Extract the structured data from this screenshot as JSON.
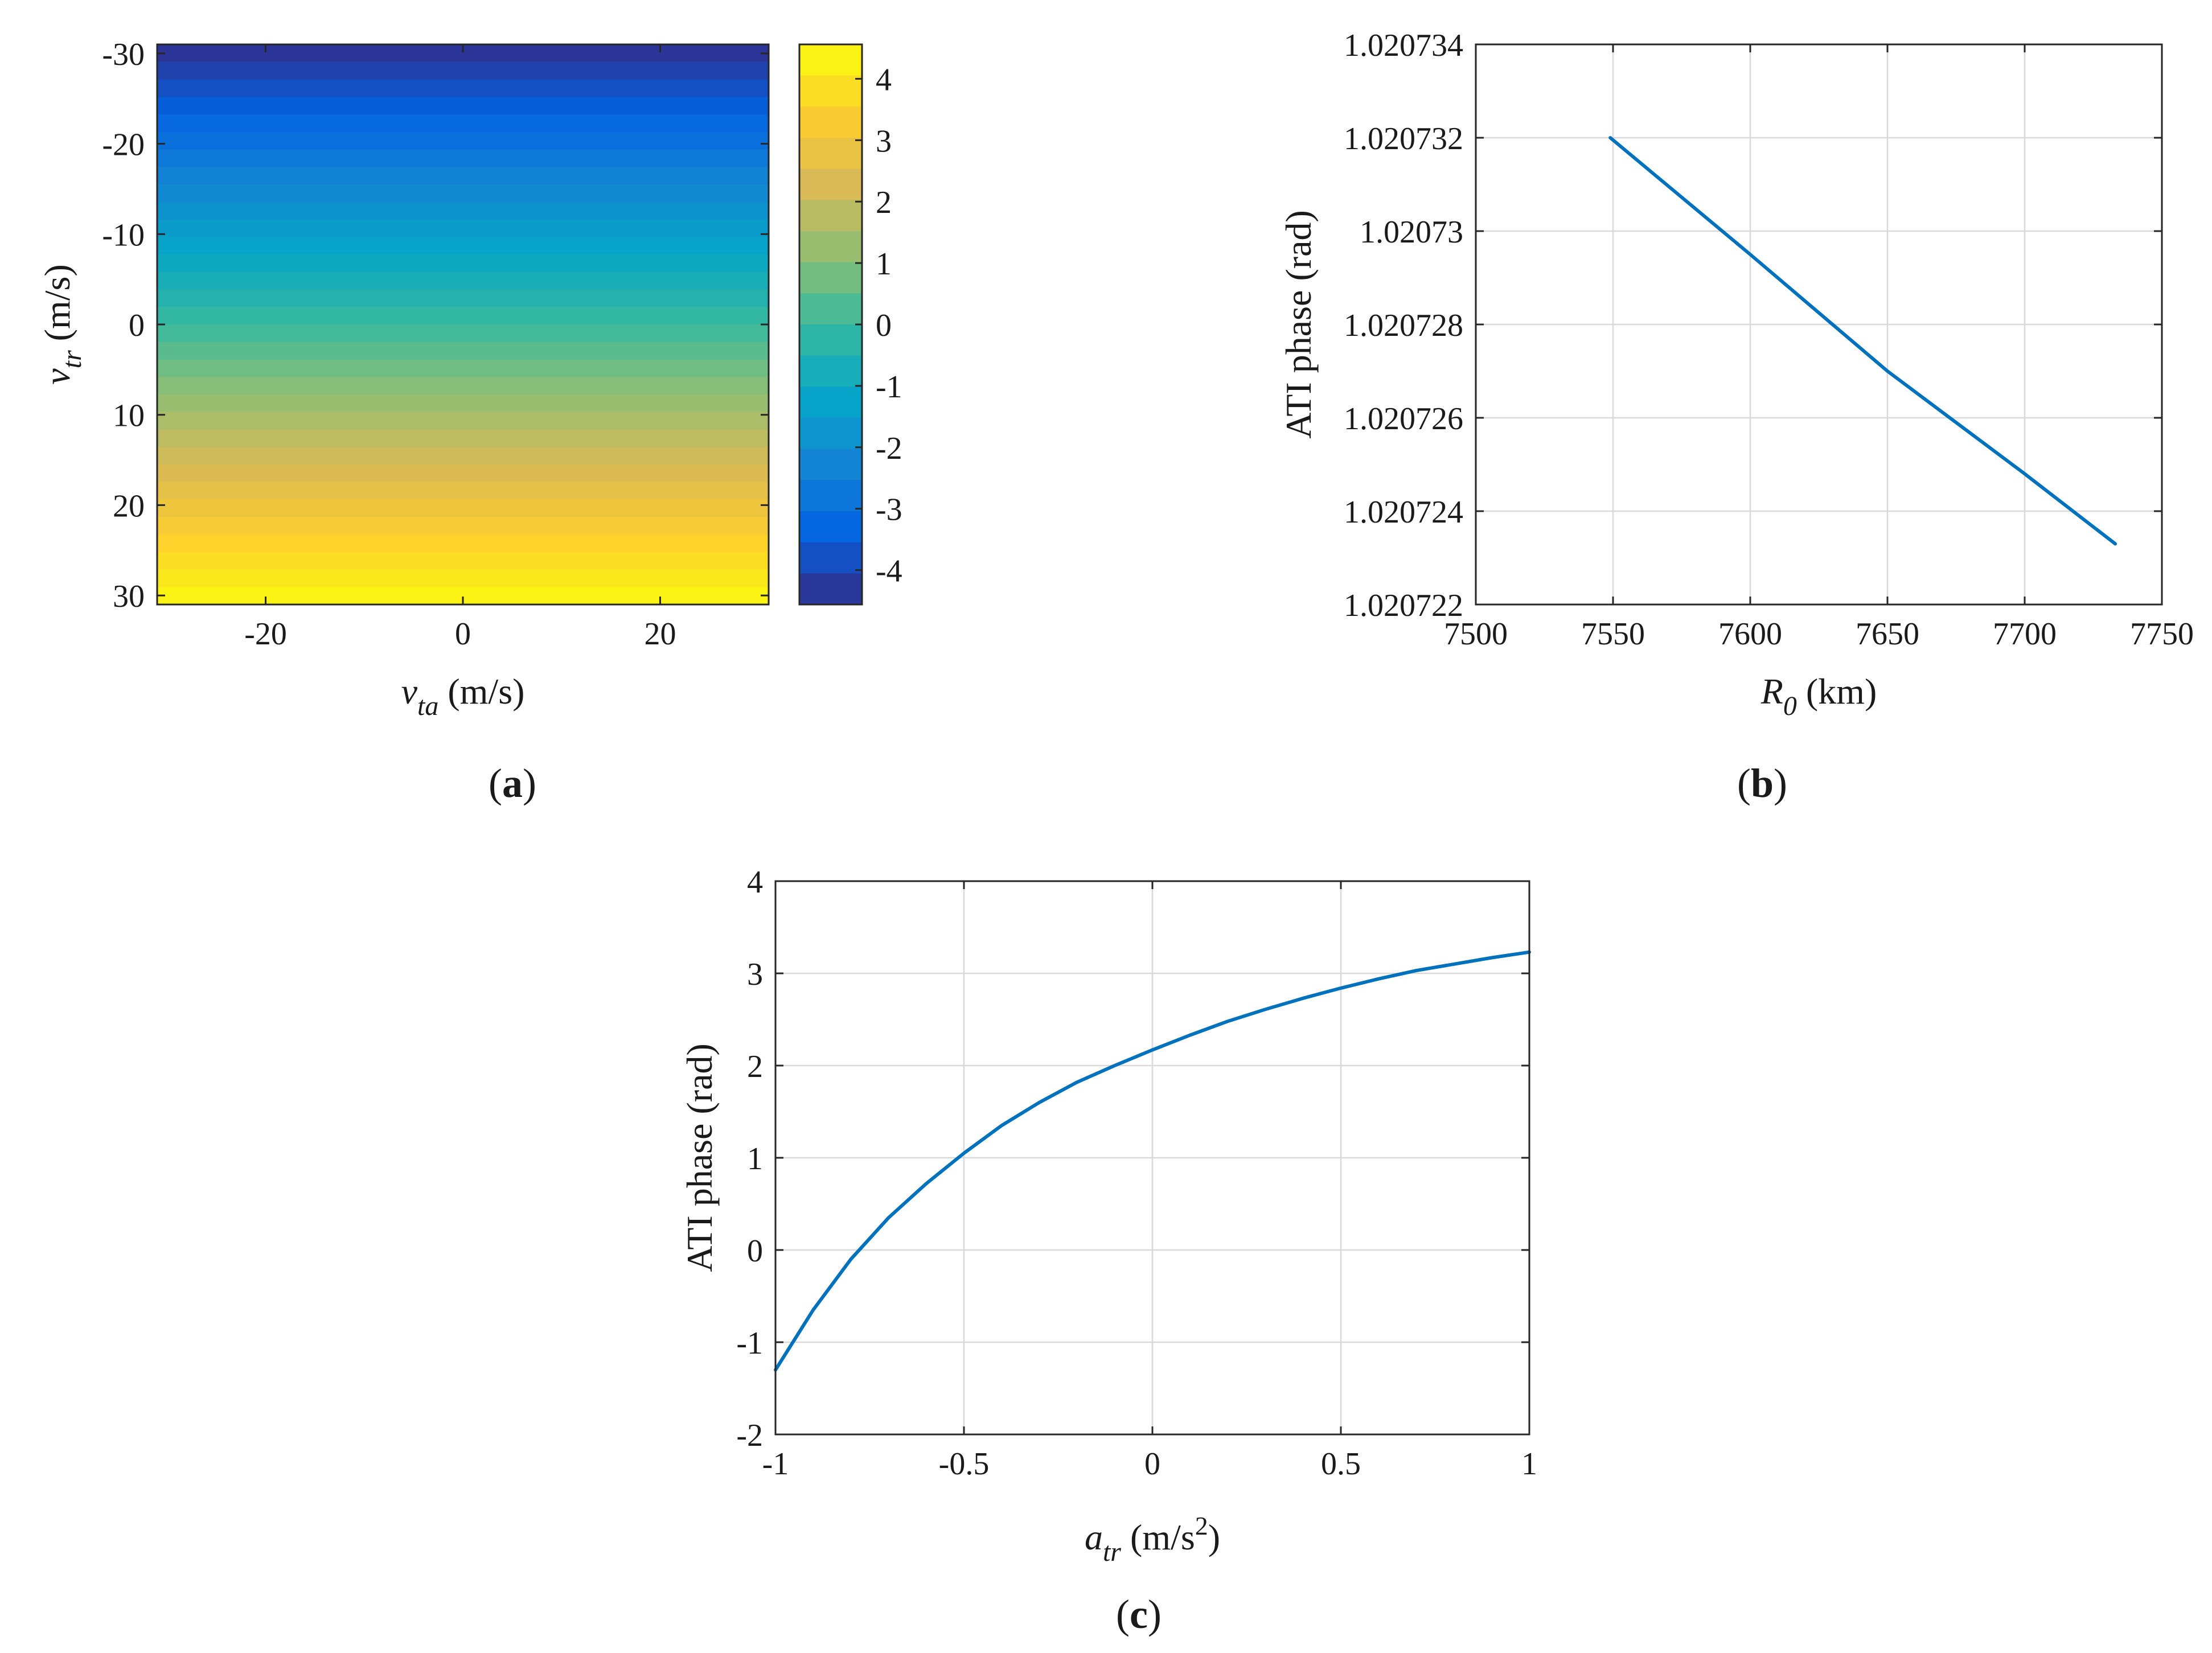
{
  "colors": {
    "line": "#0072BD",
    "grid": "#d9d9d9",
    "axis": "#262626",
    "parula": [
      "#352a87",
      "#0363e1",
      "#1485d4",
      "#06a7c6",
      "#38b99e",
      "#92bf73",
      "#d9ba56",
      "#fcce2e",
      "#f9fb0e"
    ]
  },
  "chart_data": [
    {
      "id": "a",
      "type": "heatmap",
      "panel_label": {
        "open": "(",
        "letter": "a",
        "close": ")"
      },
      "xlabel": {
        "symbol": "v",
        "subscript": "ta",
        "unit": " (m/s)"
      },
      "ylabel": {
        "symbol": "v",
        "subscript": "tr",
        "unit": " (m/s)"
      },
      "xlim": [
        -31,
        31
      ],
      "ylim": [
        -31,
        31
      ],
      "y_reversed": true,
      "x_ticks": [
        {
          "value": -20,
          "label": "-20"
        },
        {
          "value": 0,
          "label": "0"
        },
        {
          "value": 20,
          "label": "20"
        }
      ],
      "y_ticks": [
        {
          "value": -30,
          "label": "-30"
        },
        {
          "value": -20,
          "label": "-20"
        },
        {
          "value": -10,
          "label": "-10"
        },
        {
          "value": 0,
          "label": "0"
        },
        {
          "value": 10,
          "label": "10"
        },
        {
          "value": 20,
          "label": "20"
        },
        {
          "value": 30,
          "label": "30"
        }
      ],
      "colorbar": {
        "clim": [
          -4.56,
          4.56
        ],
        "ticks": [
          {
            "value": 4,
            "label": "4"
          },
          {
            "value": 3,
            "label": "3"
          },
          {
            "value": 2,
            "label": "2"
          },
          {
            "value": 1,
            "label": "1"
          },
          {
            "value": 0,
            "label": "0"
          },
          {
            "value": -1,
            "label": "-1"
          },
          {
            "value": -2,
            "label": "-2"
          },
          {
            "value": -3,
            "label": "-3"
          },
          {
            "value": -4,
            "label": "-4"
          }
        ]
      },
      "value_rule": "ATI phase depends only on v_tr: approx. linear from -4.5 rad at v_tr=-31 to +4.5 rad at v_tr=31, constant along v_ta",
      "rows": {
        "v_tr_start": -31,
        "v_tr_end": 31,
        "count": 32
      }
    },
    {
      "id": "b",
      "type": "line",
      "panel_label": {
        "open": "(",
        "letter": "b",
        "close": ")"
      },
      "xlabel": {
        "symbol": "R",
        "subscript": "0",
        "unit": " (km)"
      },
      "ylabel": {
        "text": "ATI phase (rad)"
      },
      "xlim": [
        7500,
        7750
      ],
      "ylim": [
        1.020722,
        1.020734
      ],
      "grid": true,
      "x_ticks": [
        {
          "value": 7500,
          "label": "7500"
        },
        {
          "value": 7550,
          "label": "7550"
        },
        {
          "value": 7600,
          "label": "7600"
        },
        {
          "value": 7650,
          "label": "7650"
        },
        {
          "value": 7700,
          "label": "7700"
        },
        {
          "value": 7750,
          "label": "7750"
        }
      ],
      "y_ticks": [
        {
          "value": 1.020722,
          "label": "1.020722"
        },
        {
          "value": 1.020724,
          "label": "1.020724"
        },
        {
          "value": 1.020726,
          "label": "1.020726"
        },
        {
          "value": 1.020728,
          "label": "1.020728"
        },
        {
          "value": 1.02073,
          "label": "1.02073"
        },
        {
          "value": 1.020732,
          "label": "1.020732"
        },
        {
          "value": 1.020734,
          "label": "1.020734"
        }
      ],
      "series": [
        {
          "name": "ATI phase",
          "x": [
            7549,
            7600,
            7650,
            7700,
            7733
          ],
          "y": [
            1.020732,
            1.0207295,
            1.020727,
            1.0207248,
            1.0207233
          ]
        }
      ]
    },
    {
      "id": "c",
      "type": "line",
      "panel_label": {
        "open": "(",
        "letter": "c",
        "close": ")"
      },
      "xlabel": {
        "symbol": "a",
        "subscript": "tr",
        "unit": " (m/s",
        "superscript": "2",
        "unit_close": ")"
      },
      "ylabel": {
        "text": "ATI phase (rad)"
      },
      "xlim": [
        -1,
        1
      ],
      "ylim": [
        -2,
        4
      ],
      "grid": true,
      "x_ticks": [
        {
          "value": -1,
          "label": "-1"
        },
        {
          "value": -0.5,
          "label": "-0.5"
        },
        {
          "value": 0,
          "label": "0"
        },
        {
          "value": 0.5,
          "label": "0.5"
        },
        {
          "value": 1,
          "label": "1"
        }
      ],
      "y_ticks": [
        {
          "value": -2,
          "label": "-2"
        },
        {
          "value": -1,
          "label": "-1"
        },
        {
          "value": 0,
          "label": "0"
        },
        {
          "value": 1,
          "label": "1"
        },
        {
          "value": 2,
          "label": "2"
        },
        {
          "value": 3,
          "label": "3"
        },
        {
          "value": 4,
          "label": "4"
        }
      ],
      "series": [
        {
          "name": "ATI phase",
          "x": [
            -1,
            -0.9,
            -0.8,
            -0.7,
            -0.6,
            -0.5,
            -0.4,
            -0.3,
            -0.2,
            -0.1,
            0,
            0.1,
            0.2,
            0.3,
            0.4,
            0.5,
            0.6,
            0.7,
            0.8,
            0.9,
            1
          ],
          "y": [
            -1.3,
            -0.65,
            -0.1,
            0.35,
            0.72,
            1.05,
            1.35,
            1.6,
            1.82,
            2.0,
            2.17,
            2.33,
            2.48,
            2.61,
            2.73,
            2.84,
            2.94,
            3.03,
            3.1,
            3.17,
            3.23
          ]
        }
      ]
    }
  ]
}
